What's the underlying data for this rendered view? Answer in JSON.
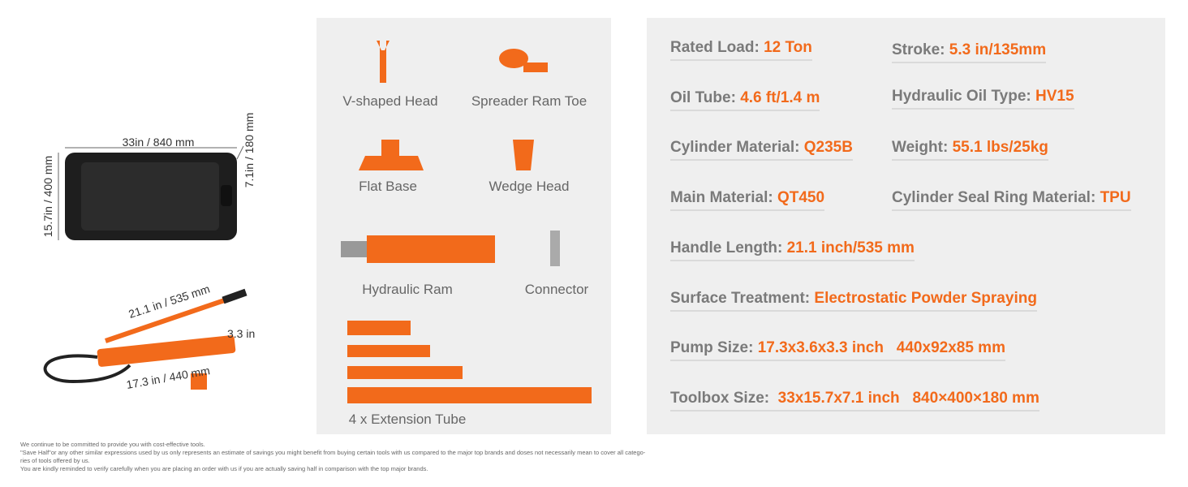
{
  "toolbox": {
    "width_label": "33in / 840 mm",
    "height_label": "15.7in / 400 mm",
    "depth_label": "7.1in / 180 mm"
  },
  "pump": {
    "handle_label": "21.1 in / 535 mm",
    "height_label": "3.3 in",
    "length_label": "17.3 in / 440 mm"
  },
  "accessories": [
    "V-shaped Head",
    "Spreader Ram Toe",
    "Flat Base",
    "Wedge Head",
    "Hydraulic Ram",
    "Connector",
    "4 x Extension Tube"
  ],
  "specs": [
    {
      "label": "Rated Load: ",
      "value": "12 Ton"
    },
    {
      "label": "Stroke: ",
      "value": "5.3 in/135mm"
    },
    {
      "label": "Oil Tube: ",
      "value": "4.6 ft/1.4 m"
    },
    {
      "label": "Hydraulic Oil Type: ",
      "value": "HV15"
    },
    {
      "label": "Cylinder Material: ",
      "value": "Q235B"
    },
    {
      "label": "Weight: ",
      "value": "55.1 lbs/25kg"
    },
    {
      "label": "Main Material: ",
      "value": "QT450"
    },
    {
      "label": "Cylinder Seal Ring Material: ",
      "value": "TPU"
    },
    {
      "label": "Handle Length: ",
      "value": "21.1 inch/535 mm"
    },
    {
      "label": "Surface Treatment: ",
      "value": "Electrostatic Powder Spraying"
    },
    {
      "label": "Pump Size: ",
      "value": "17.3x3.6x3.3 inch   440x92x85 mm"
    },
    {
      "label": "Toolbox Size:  ",
      "value": "33x15.7x7.1 inch   840×400×180 mm"
    }
  ],
  "footer": [
    "We continue to be committed to provide you with cost-effective tools.",
    "\"Save Half\"or any other similar expressions used by us only represents an estimate of savings you might benefit from buying certain tools with us compared to the major top brands and doses not necessarily mean to cover all catego-",
    "ries of tools offered by us.",
    "You are kindly reminded to verify carefully when you are placing an order with us if you are actually saving half in comparison with the top major brands."
  ]
}
